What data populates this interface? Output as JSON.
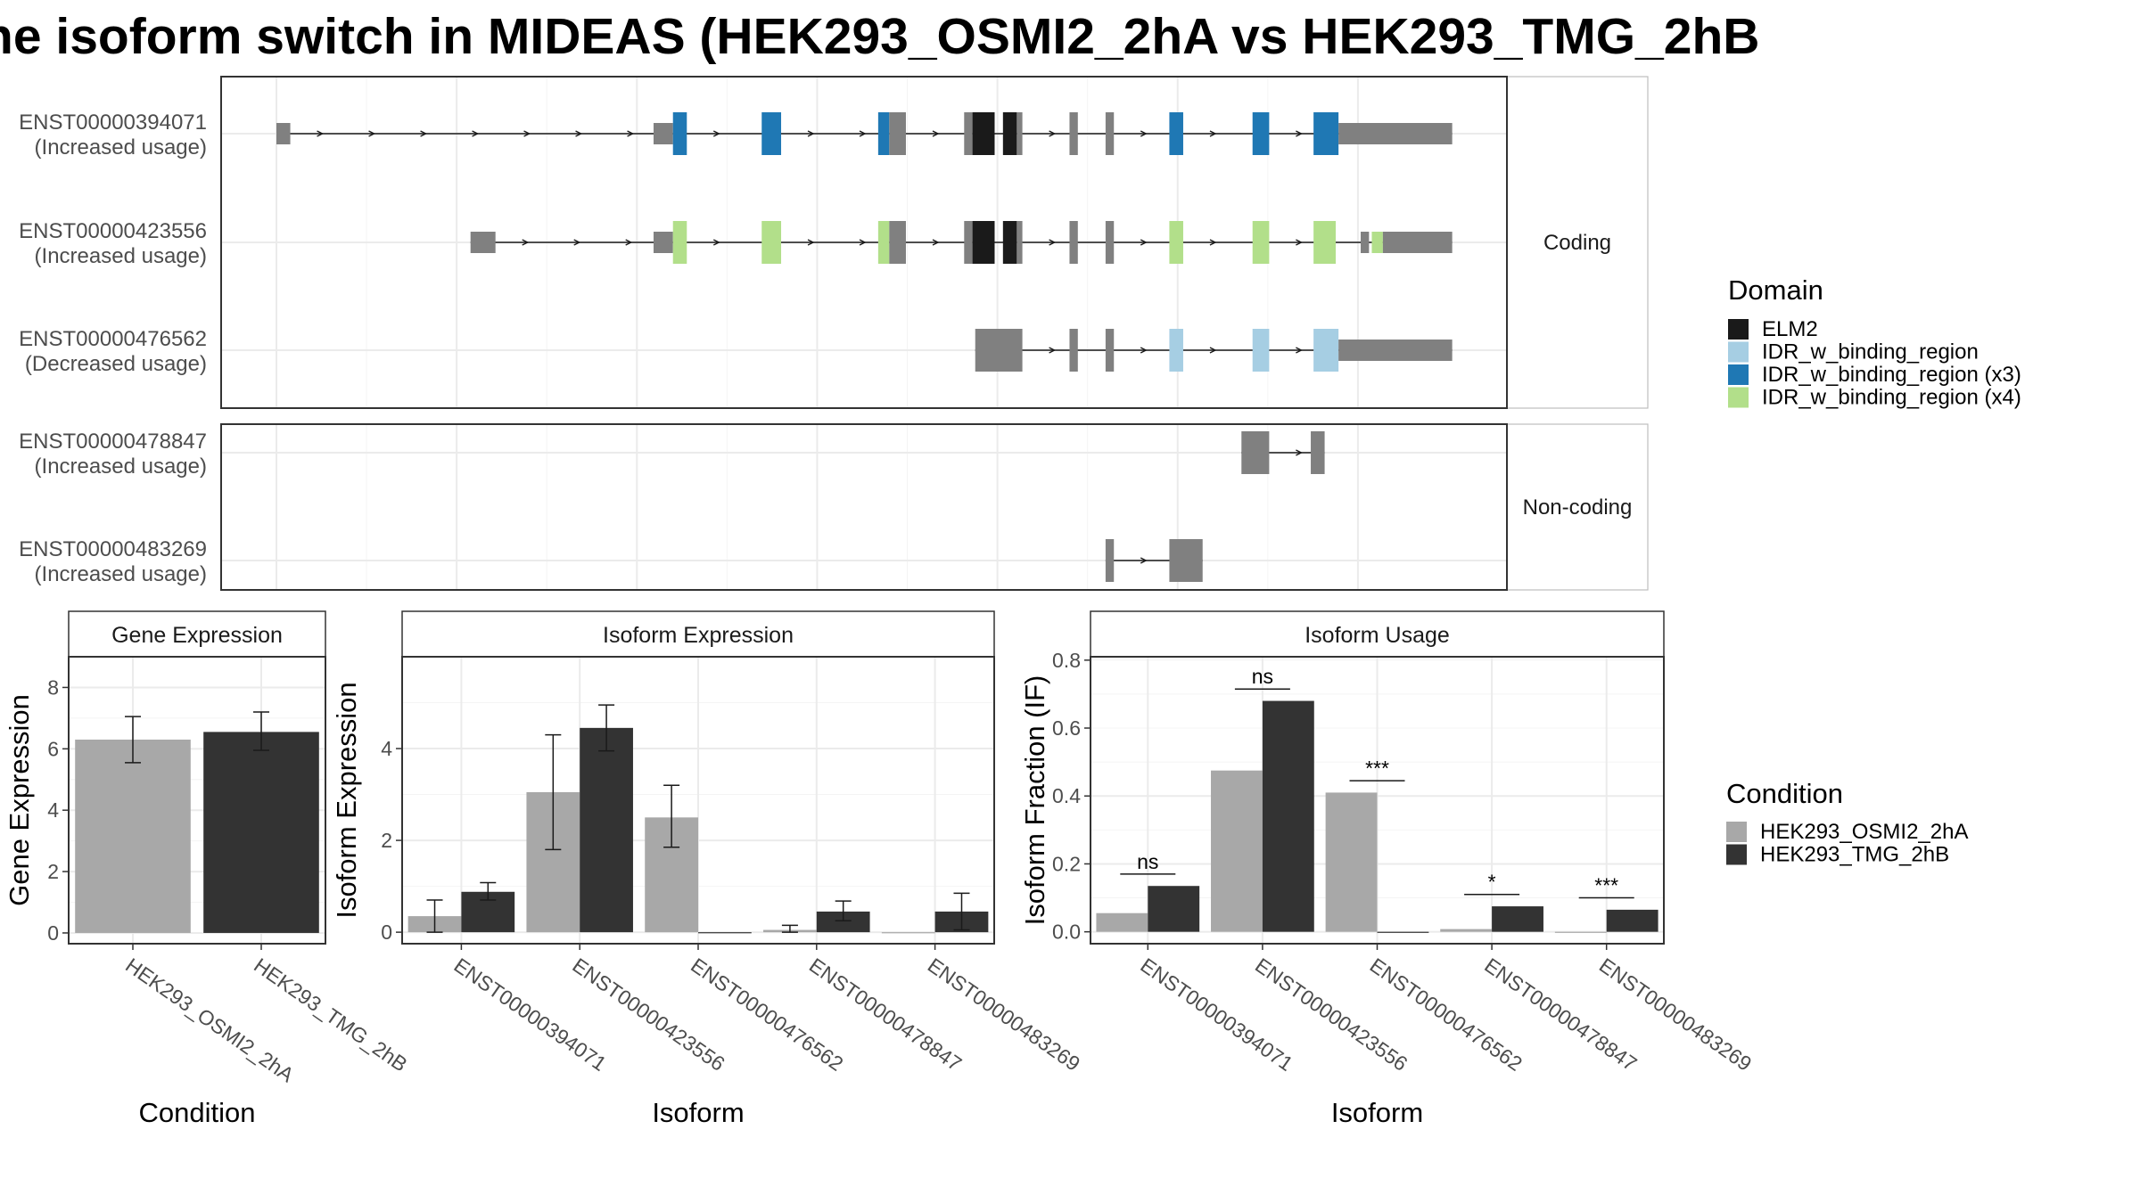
{
  "title": "ne isoform switch in MIDEAS (HEK293_OSMI2_2hA vs HEK293_TMG_2hB",
  "colors": {
    "exon_default": "#808080",
    "ELM2": "#1a1a1a",
    "IDR_w_binding_region": "#a6cee3",
    "IDR_w_binding_region (x3)": "#1f78b4",
    "IDR_w_binding_region (x4)": "#b2df8a",
    "condition_a": "#a8a8a8",
    "condition_b": "#333333"
  },
  "structure": {
    "facets": [
      {
        "label": "Coding",
        "transcripts": [
          {
            "id": "ENST00000394071",
            "usage": "(Increased usage)",
            "exons": [
              [
                0,
                0.25,
                "none"
              ],
              [
                6.8,
                7.15,
                "none"
              ],
              [
                7.15,
                7.4,
                "IDR_w_binding_region (x3)"
              ],
              [
                8.75,
                9.1,
                "IDR_w_binding_region (x3)"
              ],
              [
                10.85,
                11.05,
                "IDR_w_binding_region (x3)"
              ],
              [
                11.05,
                11.35,
                "none"
              ],
              [
                12.4,
                12.55,
                "none"
              ],
              [
                12.55,
                12.95,
                "ELM2"
              ],
              [
                13.1,
                13.35,
                "ELM2"
              ],
              [
                13.35,
                13.45,
                "none"
              ],
              [
                14.3,
                14.45,
                "none"
              ],
              [
                14.95,
                15.1,
                "none"
              ],
              [
                16.1,
                16.35,
                "IDR_w_binding_region (x3)"
              ],
              [
                17.6,
                17.9,
                "IDR_w_binding_region (x3)"
              ],
              [
                18.7,
                19.15,
                "IDR_w_binding_region (x3)"
              ],
              [
                19.15,
                21.2,
                "none"
              ]
            ]
          },
          {
            "id": "ENST00000423556",
            "usage": "(Increased usage)",
            "exons": [
              [
                3.5,
                3.95,
                "none"
              ],
              [
                6.8,
                7.15,
                "none"
              ],
              [
                7.15,
                7.4,
                "IDR_w_binding_region (x4)"
              ],
              [
                8.75,
                9.1,
                "IDR_w_binding_region (x4)"
              ],
              [
                10.85,
                11.05,
                "IDR_w_binding_region (x4)"
              ],
              [
                11.05,
                11.35,
                "none"
              ],
              [
                12.4,
                12.55,
                "none"
              ],
              [
                12.55,
                12.95,
                "ELM2"
              ],
              [
                13.1,
                13.35,
                "ELM2"
              ],
              [
                13.35,
                13.45,
                "none"
              ],
              [
                14.3,
                14.45,
                "none"
              ],
              [
                14.95,
                15.1,
                "none"
              ],
              [
                16.1,
                16.35,
                "IDR_w_binding_region (x4)"
              ],
              [
                17.6,
                17.9,
                "IDR_w_binding_region (x4)"
              ],
              [
                18.7,
                19.1,
                "IDR_w_binding_region (x4)"
              ],
              [
                19.55,
                19.7,
                "none"
              ],
              [
                19.75,
                19.95,
                "IDR_w_binding_region (x4)"
              ],
              [
                19.95,
                21.2,
                "none"
              ]
            ]
          },
          {
            "id": "ENST00000476562",
            "usage": "(Decreased usage)",
            "exons": [
              [
                12.6,
                13.2,
                "none"
              ],
              [
                13.0,
                13.45,
                "none"
              ],
              [
                14.3,
                14.45,
                "none"
              ],
              [
                14.95,
                15.1,
                "none"
              ],
              [
                16.1,
                16.35,
                "IDR_w_binding_region"
              ],
              [
                17.6,
                17.9,
                "IDR_w_binding_region"
              ],
              [
                18.7,
                19.15,
                "IDR_w_binding_region"
              ],
              [
                19.15,
                21.2,
                "none"
              ]
            ]
          }
        ]
      },
      {
        "label": "Non-coding",
        "transcripts": [
          {
            "id": "ENST00000478847",
            "usage": "(Increased usage)",
            "exons": [
              [
                17.4,
                17.9,
                "none"
              ],
              [
                18.65,
                18.9,
                "none"
              ]
            ]
          },
          {
            "id": "ENST00000483269",
            "usage": "(Increased usage)",
            "exons": [
              [
                14.95,
                15.1,
                "none"
              ],
              [
                16.1,
                16.7,
                "none"
              ]
            ]
          }
        ]
      }
    ]
  },
  "legend_domain": {
    "title": "Domain",
    "items": [
      "ELM2",
      "IDR_w_binding_region",
      "IDR_w_binding_region (x3)",
      "IDR_w_binding_region (x4)"
    ]
  },
  "legend_condition": {
    "title": "Condition",
    "items": [
      "HEK293_OSMI2_2hA",
      "HEK293_TMG_2hB"
    ]
  },
  "chart_data": [
    {
      "type": "bar",
      "title": "Gene Expression",
      "xlabel": "Condition",
      "ylabel": "Gene Expression",
      "ylim": [
        -0.35,
        9.0
      ],
      "yticks": [
        0,
        2,
        4,
        6,
        8
      ],
      "categories": [
        "HEK293_OSMI2_2hA",
        "HEK293_TMG_2hB"
      ],
      "values": [
        6.3,
        6.55
      ],
      "errors": [
        [
          5.55,
          7.05
        ],
        [
          5.95,
          7.2
        ]
      ]
    },
    {
      "type": "bar",
      "title": "Isoform Expression",
      "xlabel": "Isoform",
      "ylabel": "Isoform Expression",
      "ylim": [
        -0.25,
        6.0
      ],
      "yticks": [
        0,
        2,
        4
      ],
      "categories": [
        "ENST00000394071",
        "ENST00000423556",
        "ENST00000476562",
        "ENST00000478847",
        "ENST00000483269"
      ],
      "series": [
        {
          "name": "HEK293_OSMI2_2hA",
          "values": [
            0.35,
            3.05,
            2.5,
            0.05,
            0.0
          ],
          "errors": [
            [
              0.0,
              0.7
            ],
            [
              1.8,
              4.3
            ],
            [
              1.85,
              3.2
            ],
            [
              0.0,
              0.15
            ],
            [
              0.0,
              0.0
            ]
          ]
        },
        {
          "name": "HEK293_TMG_2hB",
          "values": [
            0.88,
            4.45,
            0.0,
            0.45,
            0.45
          ],
          "errors": [
            [
              0.7,
              1.08
            ],
            [
              3.95,
              4.95
            ],
            [
              0.0,
              0.0
            ],
            [
              0.25,
              0.68
            ],
            [
              0.05,
              0.85
            ]
          ]
        }
      ]
    },
    {
      "type": "bar",
      "title": "Isoform Usage",
      "xlabel": "Isoform",
      "ylabel": "Isoform Fraction (IF)",
      "ylim": [
        -0.035,
        0.81
      ],
      "yticks": [
        "0.0",
        "0.2",
        "0.4",
        "0.6",
        "0.8"
      ],
      "categories": [
        "ENST00000394071",
        "ENST00000423556",
        "ENST00000476562",
        "ENST00000478847",
        "ENST00000483269"
      ],
      "series": [
        {
          "name": "HEK293_OSMI2_2hA",
          "values": [
            0.055,
            0.475,
            0.41,
            0.008,
            0.0
          ]
        },
        {
          "name": "HEK293_TMG_2hB",
          "values": [
            0.135,
            0.68,
            0.0,
            0.075,
            0.065
          ]
        }
      ],
      "significance": [
        "ns",
        "ns",
        "***",
        "*",
        "***"
      ],
      "significance_y": [
        0.17,
        0.715,
        0.445,
        0.11,
        0.1
      ]
    }
  ]
}
